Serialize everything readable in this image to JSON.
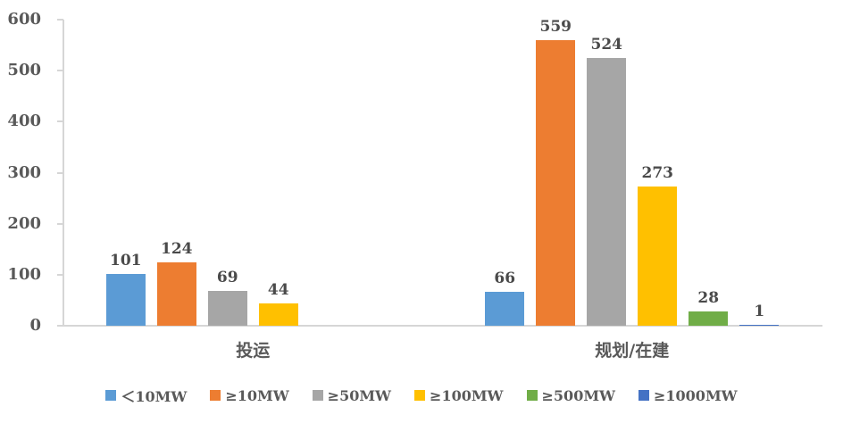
{
  "chart_data": {
    "type": "bar",
    "title": "",
    "xlabel": "",
    "ylabel": "",
    "categories": [
      "投运",
      "规划/在建"
    ],
    "series": [
      {
        "name": "＜10MW",
        "color": "#5B9BD5",
        "values": [
          101,
          66
        ]
      },
      {
        "name": "≥10MW",
        "color": "#ED7D31",
        "values": [
          124,
          559
        ]
      },
      {
        "name": "≥50MW",
        "color": "#A6A6A6",
        "values": [
          69,
          524
        ]
      },
      {
        "name": "≥100MW",
        "color": "#FFC000",
        "values": [
          44,
          273
        ]
      },
      {
        "name": "≥500MW",
        "color": "#70AD47",
        "values": [
          0,
          28
        ]
      },
      {
        "name": "≥1000MW",
        "color": "#4472C4",
        "values": [
          0,
          1
        ]
      }
    ],
    "ylim": [
      0,
      600
    ],
    "yticks": [
      0,
      100,
      200,
      300,
      400,
      500,
      600
    ],
    "grid": false,
    "data_labels": true,
    "hide_zero_labels": true,
    "legend_position": "bottom",
    "axis_color": "#d6d6d6",
    "label_color": "#595959",
    "data_label_color": "#4a4a4a",
    "background_color": "#ffffff"
  }
}
